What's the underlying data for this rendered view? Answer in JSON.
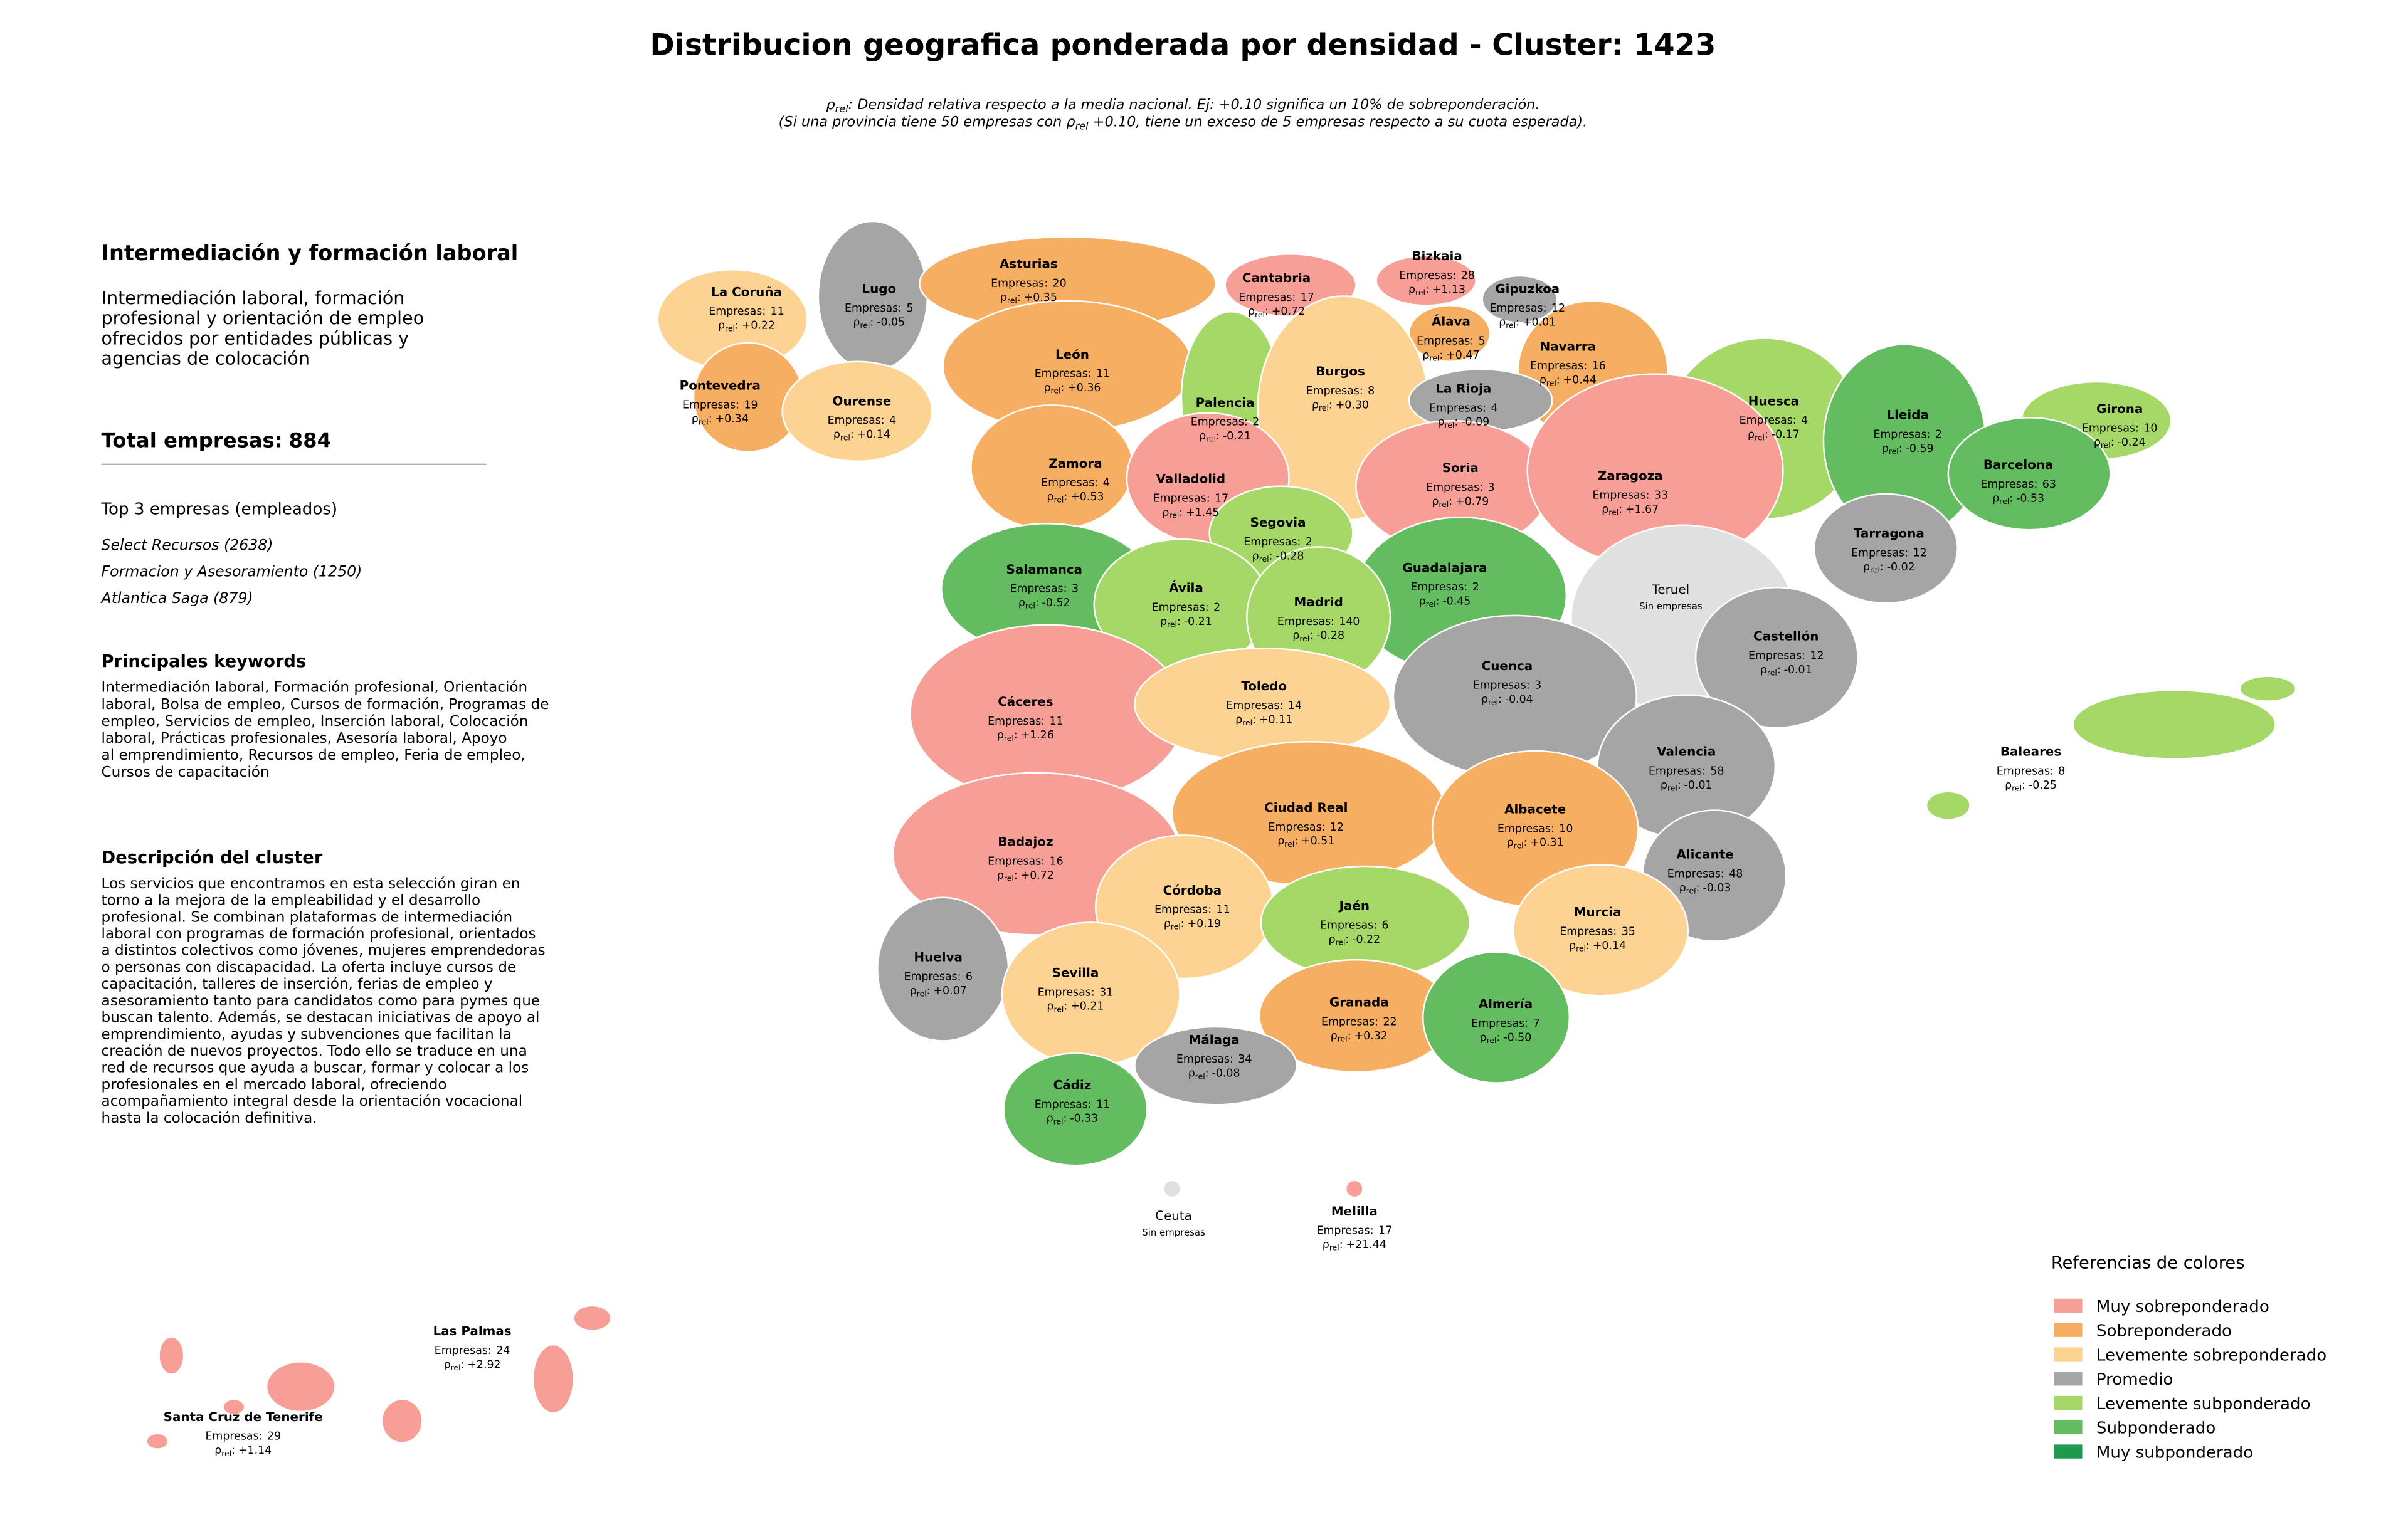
{
  "title": "Distribucion geografica ponderada por densidad - Cluster: 1423",
  "subtitle": [
    [
      "ρ",
      "rel",
      ": Densidad relativa respecto a la media nacional. Ej: +0.10 significa un 10% de sobreponderación."
    ],
    [
      "(Si una provincia tiene 50 empresas con ρ",
      "rel",
      " +0.10, tiene un exceso de 5 empresas respecto a su cuota esperada)."
    ]
  ],
  "sidebar": {
    "heading": "Intermediación y formación laboral",
    "description": [
      "Intermediación laboral, formación",
      "profesional y orientación de empleo",
      "ofrecidos por entidades públicas y",
      "agencias de colocación"
    ],
    "total_label": "Total empresas:",
    "total": 884,
    "top_heading": "Top 3 empresas (empleados)",
    "top_companies": [
      "Select Recursos (2638)",
      "Formacion y Asesoramiento (1250)",
      "Atlantica Saga (879)"
    ],
    "keywords_heading": "Principales keywords",
    "keywords": [
      "Intermediación laboral, Formación profesional, Orientación",
      "laboral, Bolsa de empleo, Cursos de formación, Programas de",
      "empleo, Servicios de empleo, Inserción laboral, Colocación",
      "laboral, Prácticas profesionales, Asesoría laboral, Apoyo",
      "al emprendimiento, Recursos de empleo, Feria de empleo,",
      "Cursos de capacitación"
    ],
    "cluster_heading": "Descripción del cluster",
    "cluster_description": [
      "Los servicios que encontramos en esta selección giran en",
      "torno a la mejora de la empleabilidad y el desarrollo",
      "profesional. Se combinan plataformas de intermediación",
      "laboral con programas de formación profesional, orientados",
      "a distintos colectivos como jóvenes, mujeres emprendedoras",
      "o personas con discapacidad. La oferta incluye cursos de",
      "capacitación, talleres de inserción, ferias de empleo y",
      "asesoramiento tanto para candidatos como para pymes que",
      "buscan talento. Además, se destacan iniciativas de apoyo al",
      "emprendimiento, ayudas y subvenciones que facilitan la",
      "creación de nuevos proyectos. Todo ello se traduce en una",
      "red de recursos que ayuda a buscar, formar y colocar a los",
      "profesionales en el mercado laboral, ofreciendo",
      "acompañamiento integral desde la orientación vocacional",
      "hasta la colocación definitiva."
    ]
  },
  "labels": {
    "empresas": "Empresas:",
    "rho": "ρ",
    "rho_sub": "rel",
    "rho_sep": ":",
    "sin_empresas": "Sin empresas"
  },
  "provinces": [
    {
      "name": "La Coruña",
      "empresas": 11,
      "rho": "+0.22",
      "color": "#fdd393"
    },
    {
      "name": "Lugo",
      "empresas": 5,
      "rho": "-0.05",
      "color": "#a5a5a5"
    },
    {
      "name": "Asturias",
      "empresas": 20,
      "rho": "+0.35",
      "color": "#f6ae62"
    },
    {
      "name": "Cantabria",
      "empresas": 17,
      "rho": "+0.72",
      "color": "#f79f97"
    },
    {
      "name": "Bizkaia",
      "empresas": 28,
      "rho": "+1.13",
      "color": "#f79f97"
    },
    {
      "name": "Gipuzkoa",
      "empresas": 12,
      "rho": "+0.01",
      "color": "#a5a5a5"
    },
    {
      "name": "Álava",
      "empresas": 5,
      "rho": "+0.47",
      "color": "#f6ae62"
    },
    {
      "name": "Navarra",
      "empresas": 16,
      "rho": "+0.44",
      "color": "#f6ae62"
    },
    {
      "name": "Pontevedra",
      "empresas": 19,
      "rho": "+0.34",
      "color": "#f6ae62"
    },
    {
      "name": "Ourense",
      "empresas": 4,
      "rho": "+0.14",
      "color": "#fdd393"
    },
    {
      "name": "León",
      "empresas": 11,
      "rho": "+0.36",
      "color": "#f6ae62"
    },
    {
      "name": "Palencia",
      "empresas": 2,
      "rho": "-0.21",
      "color": "#a5d867"
    },
    {
      "name": "Burgos",
      "empresas": 8,
      "rho": "+0.30",
      "color": "#fdd393"
    },
    {
      "name": "La Rioja",
      "empresas": 4,
      "rho": "-0.09",
      "color": "#a5a5a5"
    },
    {
      "name": "Huesca",
      "empresas": 4,
      "rho": "-0.17",
      "color": "#a5d867"
    },
    {
      "name": "Lleida",
      "empresas": 2,
      "rho": "-0.59",
      "color": "#64bc61"
    },
    {
      "name": "Girona",
      "empresas": 10,
      "rho": "-0.24",
      "color": "#a5d867"
    },
    {
      "name": "Zamora",
      "empresas": 4,
      "rho": "+0.53",
      "color": "#f6ae62"
    },
    {
      "name": "Valladolid",
      "empresas": 17,
      "rho": "+1.45",
      "color": "#f79f97"
    },
    {
      "name": "Soria",
      "empresas": 3,
      "rho": "+0.79",
      "color": "#f79f97"
    },
    {
      "name": "Zaragoza",
      "empresas": 33,
      "rho": "+1.67",
      "color": "#f79f97"
    },
    {
      "name": "Barcelona",
      "empresas": 63,
      "rho": "-0.53",
      "color": "#64bc61"
    },
    {
      "name": "Tarragona",
      "empresas": 12,
      "rho": "-0.02",
      "color": "#a5a5a5"
    },
    {
      "name": "Segovia",
      "empresas": 2,
      "rho": "-0.28",
      "color": "#a5d867"
    },
    {
      "name": "Salamanca",
      "empresas": 3,
      "rho": "-0.52",
      "color": "#64bc61"
    },
    {
      "name": "Guadalajara",
      "empresas": 2,
      "rho": "-0.45",
      "color": "#64bc61"
    },
    {
      "name": "Teruel",
      "color": "#e0e0e0"
    },
    {
      "name": "Ávila",
      "empresas": 2,
      "rho": "-0.21",
      "color": "#a5d867"
    },
    {
      "name": "Madrid",
      "empresas": 140,
      "rho": "-0.28",
      "color": "#a5d867"
    },
    {
      "name": "Castellón",
      "empresas": 12,
      "rho": "-0.01",
      "color": "#a5a5a5"
    },
    {
      "name": "Cáceres",
      "empresas": 11,
      "rho": "+1.26",
      "color": "#f79f97"
    },
    {
      "name": "Toledo",
      "empresas": 14,
      "rho": "+0.11",
      "color": "#fdd393"
    },
    {
      "name": "Cuenca",
      "empresas": 3,
      "rho": "-0.04",
      "color": "#a5a5a5"
    },
    {
      "name": "Valencia",
      "empresas": 58,
      "rho": "-0.01",
      "color": "#a5a5a5"
    },
    {
      "name": "Baleares",
      "empresas": 8,
      "rho": "-0.25",
      "color": "#a5d867"
    },
    {
      "name": "Ciudad Real",
      "empresas": 12,
      "rho": "+0.51",
      "color": "#f6ae62"
    },
    {
      "name": "Albacete",
      "empresas": 10,
      "rho": "+0.31",
      "color": "#f6ae62"
    },
    {
      "name": "Badajoz",
      "empresas": 16,
      "rho": "+0.72",
      "color": "#f79f97"
    },
    {
      "name": "Alicante",
      "empresas": 48,
      "rho": "-0.03",
      "color": "#a5a5a5"
    },
    {
      "name": "Córdoba",
      "empresas": 11,
      "rho": "+0.19",
      "color": "#fdd393"
    },
    {
      "name": "Jaén",
      "empresas": 6,
      "rho": "-0.22",
      "color": "#a5d867"
    },
    {
      "name": "Murcia",
      "empresas": 35,
      "rho": "+0.14",
      "color": "#fdd393"
    },
    {
      "name": "Huelva",
      "empresas": 6,
      "rho": "+0.07",
      "color": "#a5a5a5"
    },
    {
      "name": "Sevilla",
      "empresas": 31,
      "rho": "+0.21",
      "color": "#fdd393"
    },
    {
      "name": "Granada",
      "empresas": 22,
      "rho": "+0.32",
      "color": "#f6ae62"
    },
    {
      "name": "Almería",
      "empresas": 7,
      "rho": "-0.50",
      "color": "#64bc61"
    },
    {
      "name": "Málaga",
      "empresas": 34,
      "rho": "-0.08",
      "color": "#a5a5a5"
    },
    {
      "name": "Cádiz",
      "empresas": 11,
      "rho": "-0.33",
      "color": "#64bc61"
    },
    {
      "name": "Ceuta",
      "color": "#e0e0e0"
    },
    {
      "name": "Melilla",
      "empresas": 17,
      "rho": "+21.44",
      "color": "#f79f97"
    },
    {
      "name": "Las Palmas",
      "empresas": 24,
      "rho": "+2.92",
      "color": "#f79f97"
    },
    {
      "name": "Santa Cruz de Tenerife",
      "empresas": 29,
      "rho": "+1.14",
      "color": "#f79f97"
    }
  ],
  "legend": {
    "title": "Referencias de colores",
    "items": [
      {
        "label": "Muy sobreponderado",
        "color": "#f79f97"
      },
      {
        "label": "Sobreponderado",
        "color": "#f6ae62"
      },
      {
        "label": "Levemente sobreponderado",
        "color": "#fdd393"
      },
      {
        "label": "Promedio",
        "color": "#a5a5a5"
      },
      {
        "label": "Levemente subponderado",
        "color": "#a5d867"
      },
      {
        "label": "Subponderado",
        "color": "#64bc61"
      },
      {
        "label": "Muy subponderado",
        "color": "#1d9a50"
      }
    ]
  }
}
